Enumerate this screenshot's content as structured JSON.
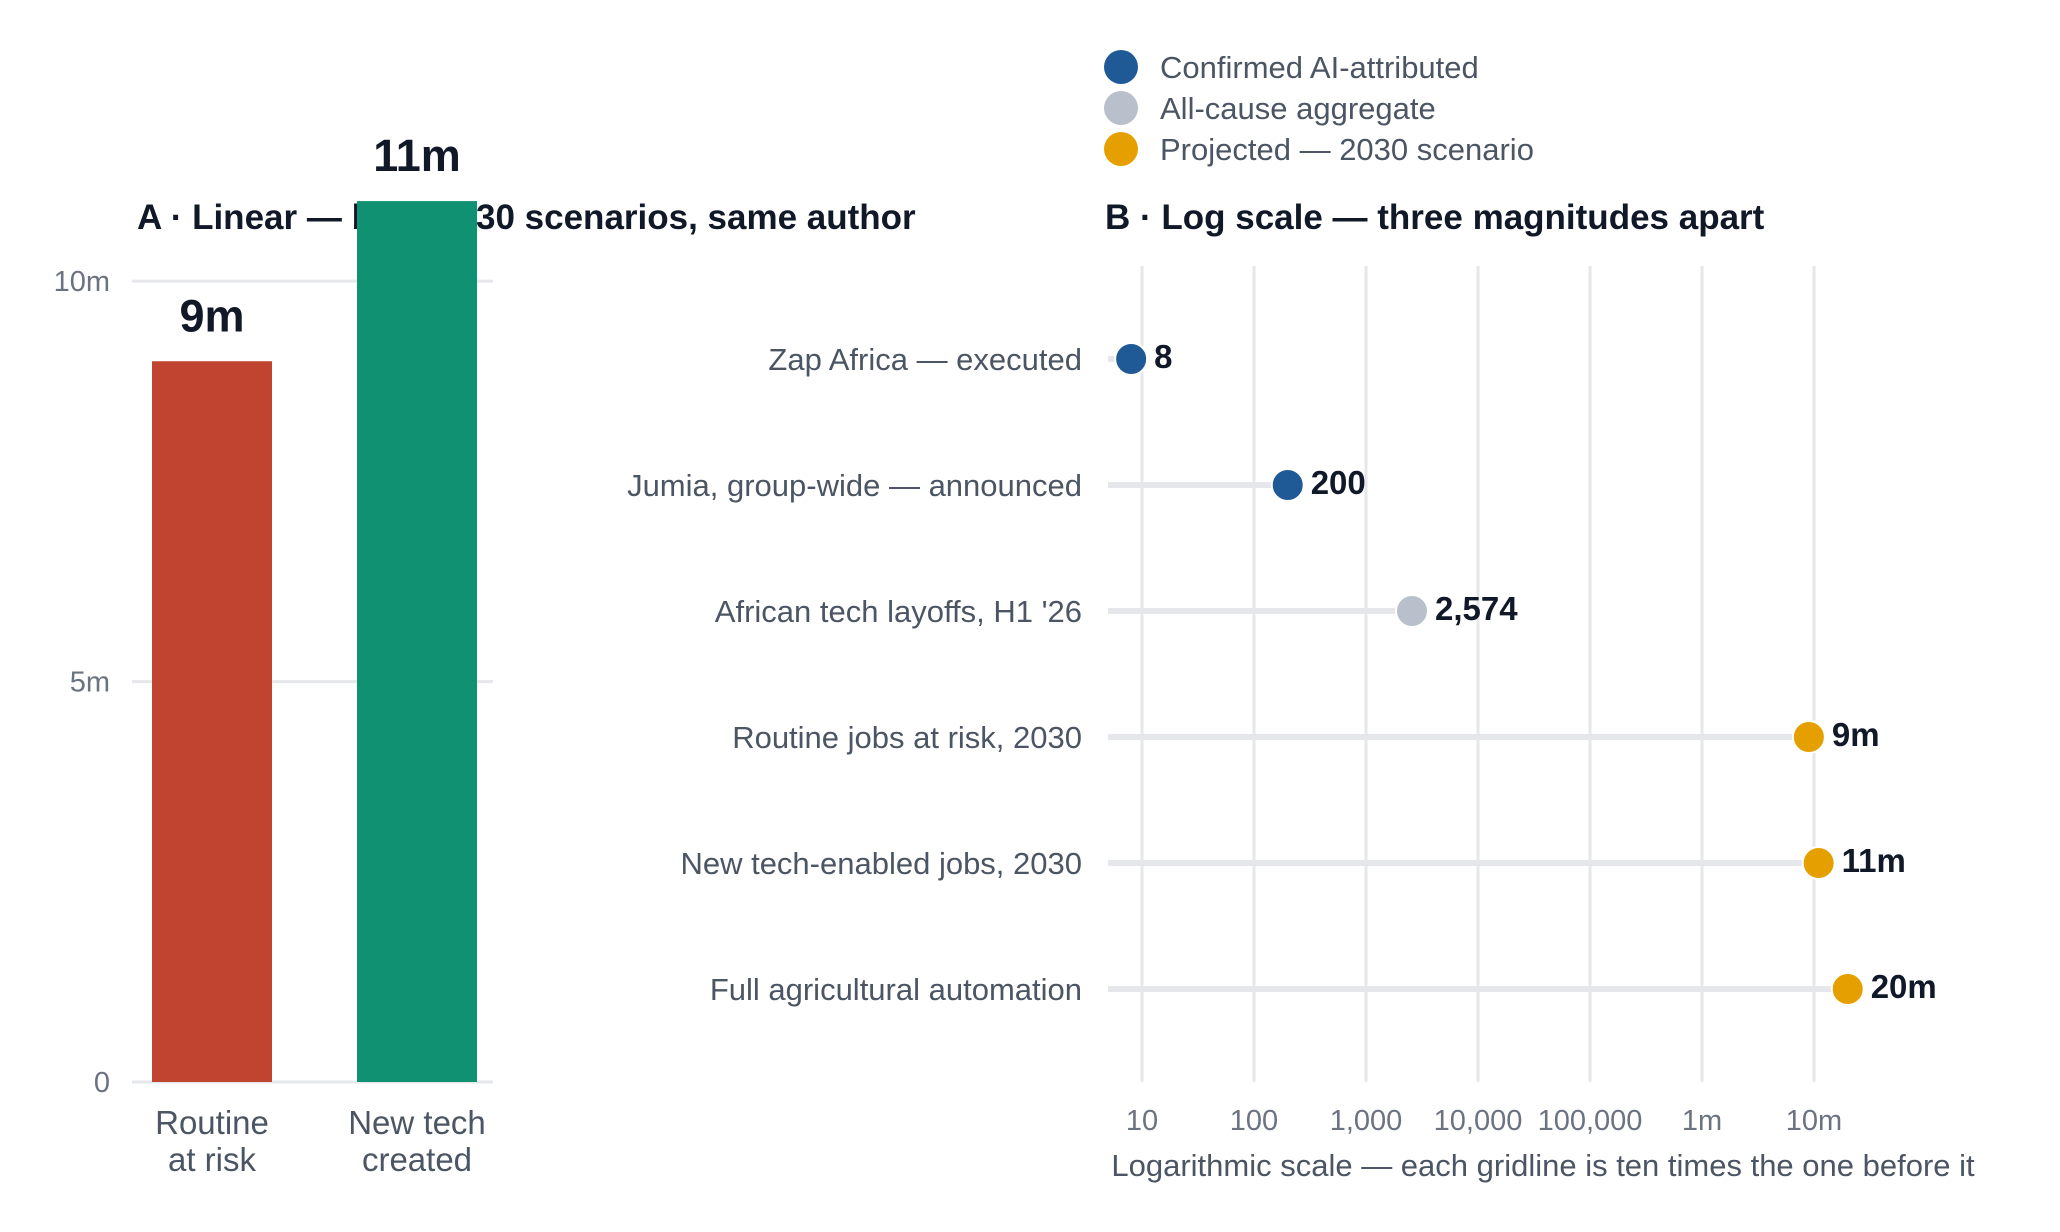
{
  "legend": [
    {
      "label": "Confirmed AI-attributed",
      "color": "#1f5a96"
    },
    {
      "label": "All-cause aggregate",
      "color": "#b9c0cb"
    },
    {
      "label": "Projected — 2030 scenario",
      "color": "#e5a000"
    }
  ],
  "chart_data": [
    {
      "type": "bar",
      "title": "A · Linear — both 2030 scenarios, same author",
      "categories": [
        "Routine at risk",
        "New tech created"
      ],
      "category_lines": [
        [
          "Routine",
          "at risk"
        ],
        [
          "New tech",
          "created"
        ]
      ],
      "values": [
        9000000,
        11000000
      ],
      "value_labels": [
        "9m",
        "11m"
      ],
      "colors": [
        "#c0442f",
        "#109171"
      ],
      "ylim": [
        0,
        12000000
      ],
      "yticks": [
        0,
        5000000,
        10000000
      ],
      "ytick_labels": [
        "0",
        "5m",
        "10m"
      ],
      "grid": true
    },
    {
      "type": "scatter",
      "title": "B · Log scale — three magnitudes apart",
      "xscale": "log",
      "xlabel": "Logarithmic scale — each gridline is ten times the one before it",
      "xlim": [
        6,
        40000000
      ],
      "xticks": [
        10,
        100,
        1000,
        10000,
        100000,
        1000000,
        10000000
      ],
      "xtick_labels": [
        "10",
        "100",
        "1,000",
        "10,000",
        "100,000",
        "1m",
        "10m"
      ],
      "grid": true,
      "points": [
        {
          "label": "Zap Africa — executed",
          "value": 8,
          "value_label": "8",
          "group": "Confirmed AI-attributed",
          "color": "#1f5a96"
        },
        {
          "label": "Jumia, group-wide — announced",
          "value": 200,
          "value_label": "200",
          "group": "Confirmed AI-attributed",
          "color": "#1f5a96"
        },
        {
          "label": "African tech layoffs, H1 '26",
          "value": 2574,
          "value_label": "2,574",
          "group": "All-cause aggregate",
          "color": "#b9c0cb"
        },
        {
          "label": "Routine jobs at risk, 2030",
          "value": 9000000,
          "value_label": "9m",
          "group": "Projected — 2030 scenario",
          "color": "#e5a000"
        },
        {
          "label": "New tech-enabled jobs, 2030",
          "value": 11000000,
          "value_label": "11m",
          "group": "Projected — 2030 scenario",
          "color": "#e5a000"
        },
        {
          "label": "Full agricultural automation",
          "value": 20000000,
          "value_label": "20m",
          "group": "Projected — 2030 scenario",
          "color": "#e5a000"
        }
      ]
    }
  ]
}
